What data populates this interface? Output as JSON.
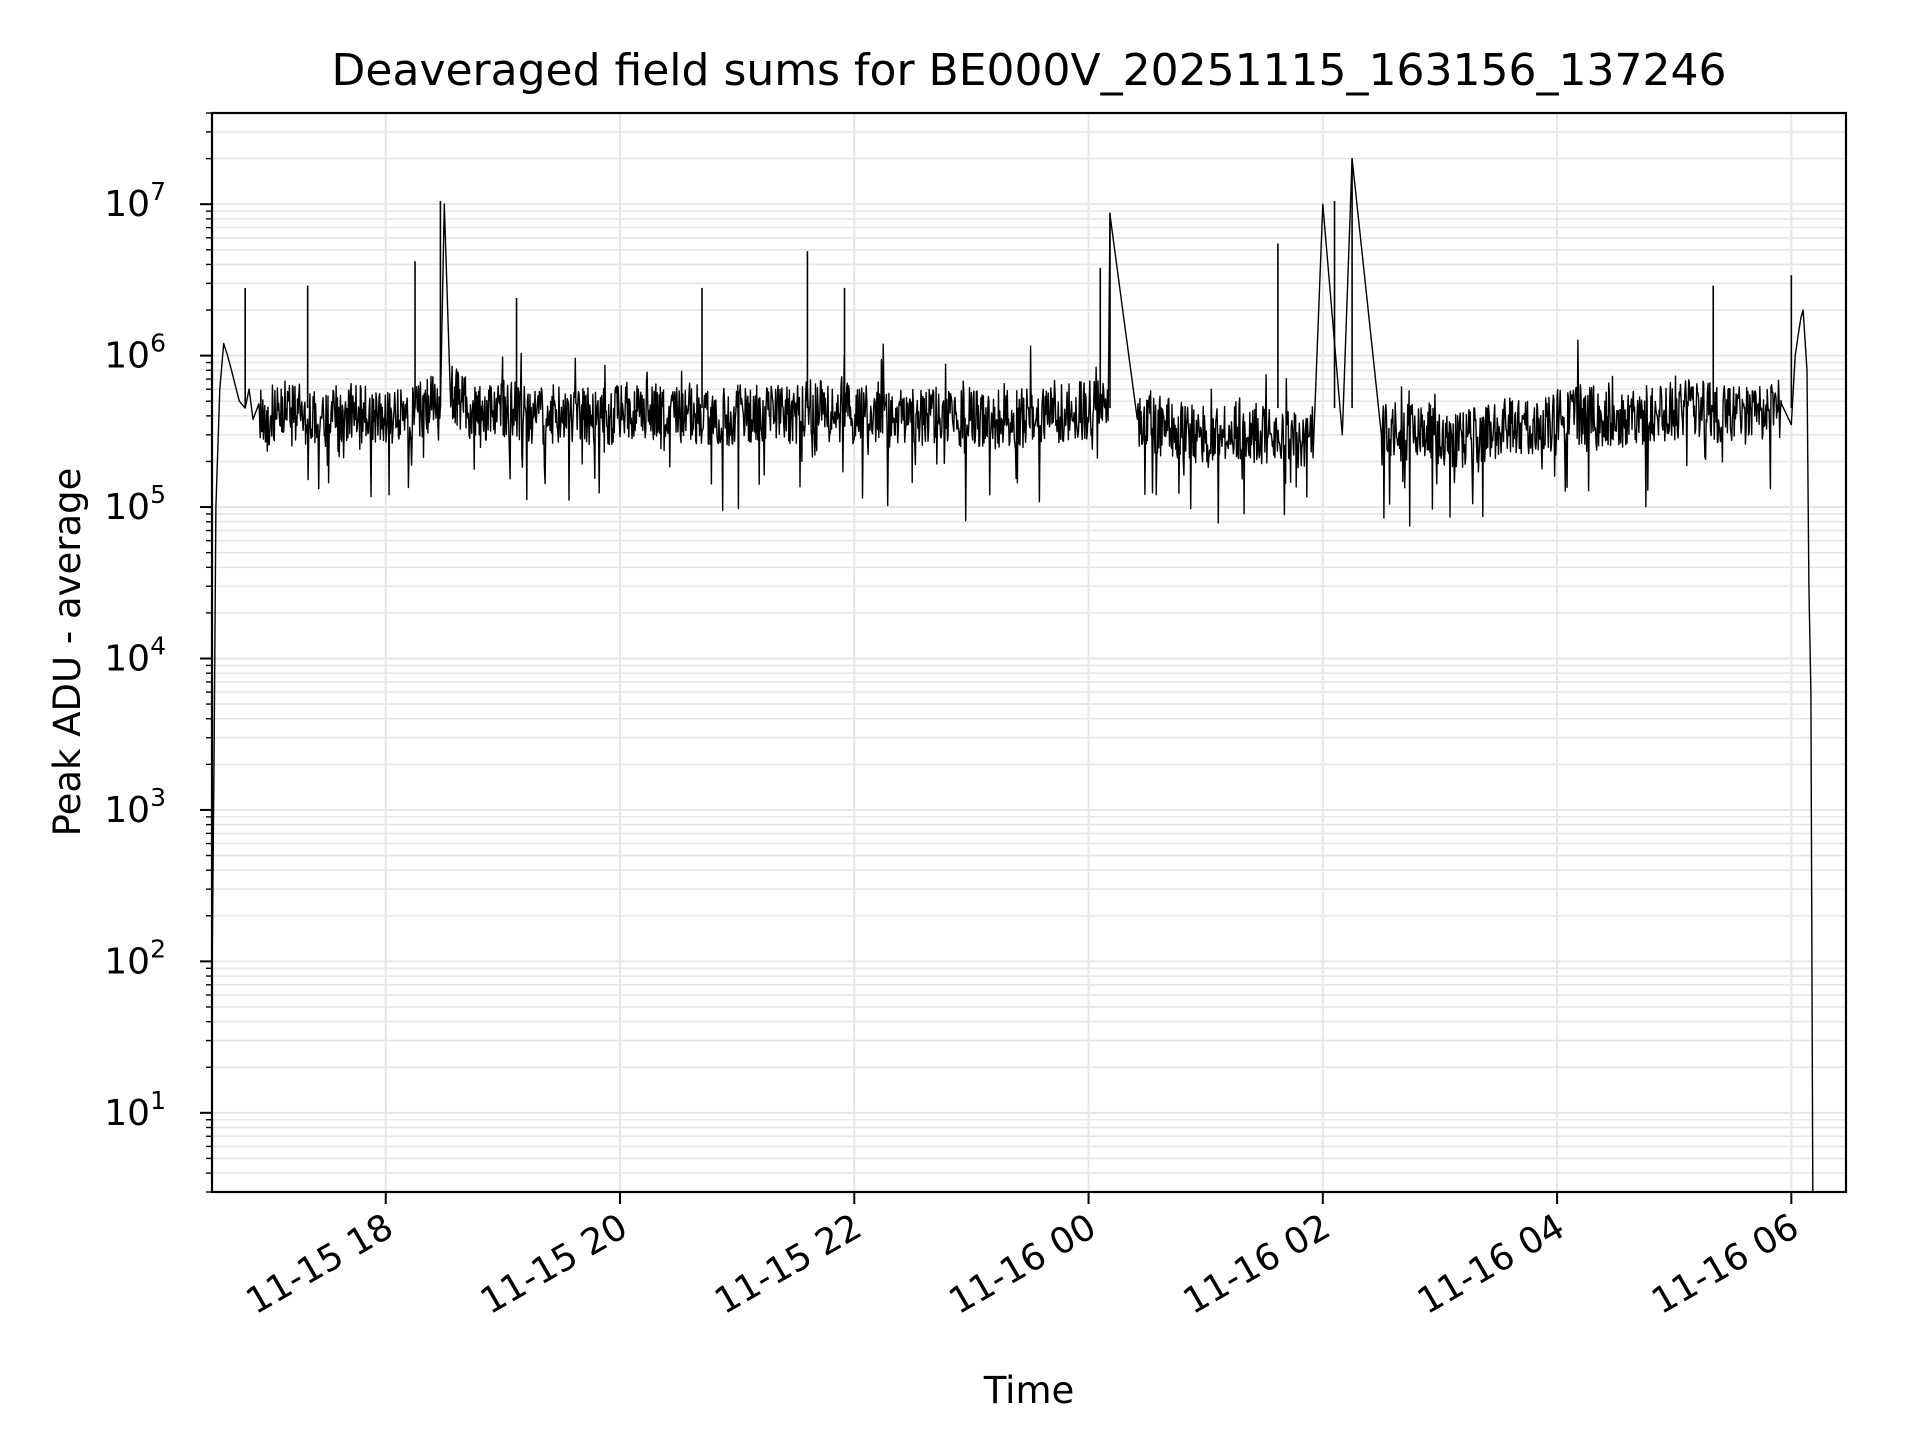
{
  "chart_data": {
    "type": "line",
    "title": "Deaveraged field sums for BE000V_20251115_163156_137246",
    "xlabel": "Time",
    "ylabel": "Peak ADU - average",
    "yscale": "log",
    "xlim": [
      "2025-11-15 16:31",
      "2025-11-16 06:28"
    ],
    "ylim": [
      3,
      40000000
    ],
    "x_ticks": [
      {
        "value": "2025-11-15 18:00",
        "label": "11-15 18"
      },
      {
        "value": "2025-11-15 20:00",
        "label": "11-15 20"
      },
      {
        "value": "2025-11-15 22:00",
        "label": "11-15 22"
      },
      {
        "value": "2025-11-16 00:00",
        "label": "11-16 00"
      },
      {
        "value": "2025-11-16 02:00",
        "label": "11-16 02"
      },
      {
        "value": "2025-11-16 04:00",
        "label": "11-16 04"
      },
      {
        "value": "2025-11-16 06:00",
        "label": "11-16 06"
      }
    ],
    "y_ticks": [
      {
        "value": 10,
        "base": "10",
        "exp": "1"
      },
      {
        "value": 100,
        "base": "10",
        "exp": "2"
      },
      {
        "value": 1000,
        "base": "10",
        "exp": "3"
      },
      {
        "value": 10000,
        "base": "10",
        "exp": "4"
      },
      {
        "value": 100000,
        "base": "10",
        "exp": "5"
      },
      {
        "value": 1000000,
        "base": "10",
        "exp": "6"
      },
      {
        "value": 10000000,
        "base": "10",
        "exp": "7"
      }
    ],
    "grid": true,
    "line_color": "#000000",
    "grid_color": "#e6e6e6",
    "series": [
      {
        "x": [
          "2025-11-15 16:31",
          "2025-11-15 16:32",
          "2025-11-15 16:33",
          "2025-11-15 16:35",
          "2025-11-15 16:37",
          "2025-11-15 16:39",
          "2025-11-15 16:41",
          "2025-11-15 16:45",
          "2025-11-15 16:48",
          "2025-11-15 16:50",
          "2025-11-15 16:52",
          "2025-11-15 16:55",
          "2025-11-15 16:57",
          "2025-11-15 17:00",
          "2025-11-15 17:10",
          "2025-11-15 17:25",
          "2025-11-15 17:40",
          "2025-11-15 17:55",
          "2025-11-15 18:10",
          "2025-11-15 18:20",
          "2025-11-15 18:28",
          "2025-11-15 18:30",
          "2025-11-15 18:33",
          "2025-11-15 18:45",
          "2025-11-15 19:05",
          "2025-11-15 19:10",
          "2025-11-15 19:30",
          "2025-11-15 19:50",
          "2025-11-15 20:10",
          "2025-11-15 20:30",
          "2025-11-15 20:35",
          "2025-11-15 20:50",
          "2025-11-15 21:10",
          "2025-11-15 21:30",
          "2025-11-15 21:36",
          "2025-11-15 21:50",
          "2025-11-15 22:10",
          "2025-11-15 22:30",
          "2025-11-15 22:50",
          "2025-11-15 23:10",
          "2025-11-15 23:30",
          "2025-11-15 23:50",
          "2025-11-16 00:10",
          "2025-11-16 00:11",
          "2025-11-16 00:25",
          "2025-11-16 00:45",
          "2025-11-16 01:00",
          "2025-11-16 01:20",
          "2025-11-16 01:40",
          "2025-11-16 01:55",
          "2025-11-16 02:00",
          "2025-11-16 02:10",
          "2025-11-16 02:15",
          "2025-11-16 02:30",
          "2025-11-16 02:50",
          "2025-11-16 03:10",
          "2025-11-16 03:30",
          "2025-11-16 03:50",
          "2025-11-16 04:10",
          "2025-11-16 04:30",
          "2025-11-16 04:50",
          "2025-11-16 05:10",
          "2025-11-16 05:25",
          "2025-11-16 05:40",
          "2025-11-16 05:55",
          "2025-11-16 06:00",
          "2025-11-16 06:02",
          "2025-11-16 06:04",
          "2025-11-16 06:05",
          "2025-11-16 06:06",
          "2025-11-16 06:08",
          "2025-11-16 06:09",
          "2025-11-16 06:10",
          "2025-11-16 06:11",
          "2025-11-16 06:12",
          "2025-11-16 06:13"
        ],
        "values": [
          70,
          2000,
          100000,
          600000,
          1200000,
          1000000,
          800000,
          500000,
          450000,
          600000,
          380000,
          480000,
          400000,
          350000,
          450000,
          380000,
          420000,
          400000,
          380000,
          450000,
          500000,
          10000000,
          600000,
          400000,
          450000,
          400000,
          420000,
          380000,
          450000,
          400000,
          420000,
          380000,
          430000,
          400000,
          450000,
          420000,
          400000,
          380000,
          400000,
          380000,
          400000,
          420000,
          450000,
          8500000,
          380000,
          320000,
          300000,
          320000,
          280000,
          300000,
          10000000,
          300000,
          20000000,
          300000,
          320000,
          280000,
          330000,
          350000,
          400000,
          380000,
          420000,
          450000,
          400000,
          420000,
          450000,
          350000,
          1000000,
          1500000,
          1800000,
          2000000,
          800000,
          30000,
          6000,
          3,
          3,
          3
        ]
      }
    ],
    "spikes": [
      {
        "x": "2025-11-15 16:48",
        "y": 2800000
      },
      {
        "x": "2025-11-15 17:20",
        "y": 2900000
      },
      {
        "x": "2025-11-15 18:15",
        "y": 4200000
      },
      {
        "x": "2025-11-15 18:28",
        "y": 10500000
      },
      {
        "x": "2025-11-15 19:07",
        "y": 2400000
      },
      {
        "x": "2025-11-15 20:42",
        "y": 2800000
      },
      {
        "x": "2025-11-15 21:36",
        "y": 4900000
      },
      {
        "x": "2025-11-15 21:55",
        "y": 2800000
      },
      {
        "x": "2025-11-16 00:06",
        "y": 3800000
      },
      {
        "x": "2025-11-16 00:11",
        "y": 8800000
      },
      {
        "x": "2025-11-16 01:37",
        "y": 5500000
      },
      {
        "x": "2025-11-16 02:06",
        "y": 10500000
      },
      {
        "x": "2025-11-16 02:15",
        "y": 20000000
      },
      {
        "x": "2025-11-16 05:20",
        "y": 2900000
      },
      {
        "x": "2025-11-16 06:00",
        "y": 3400000
      }
    ]
  }
}
